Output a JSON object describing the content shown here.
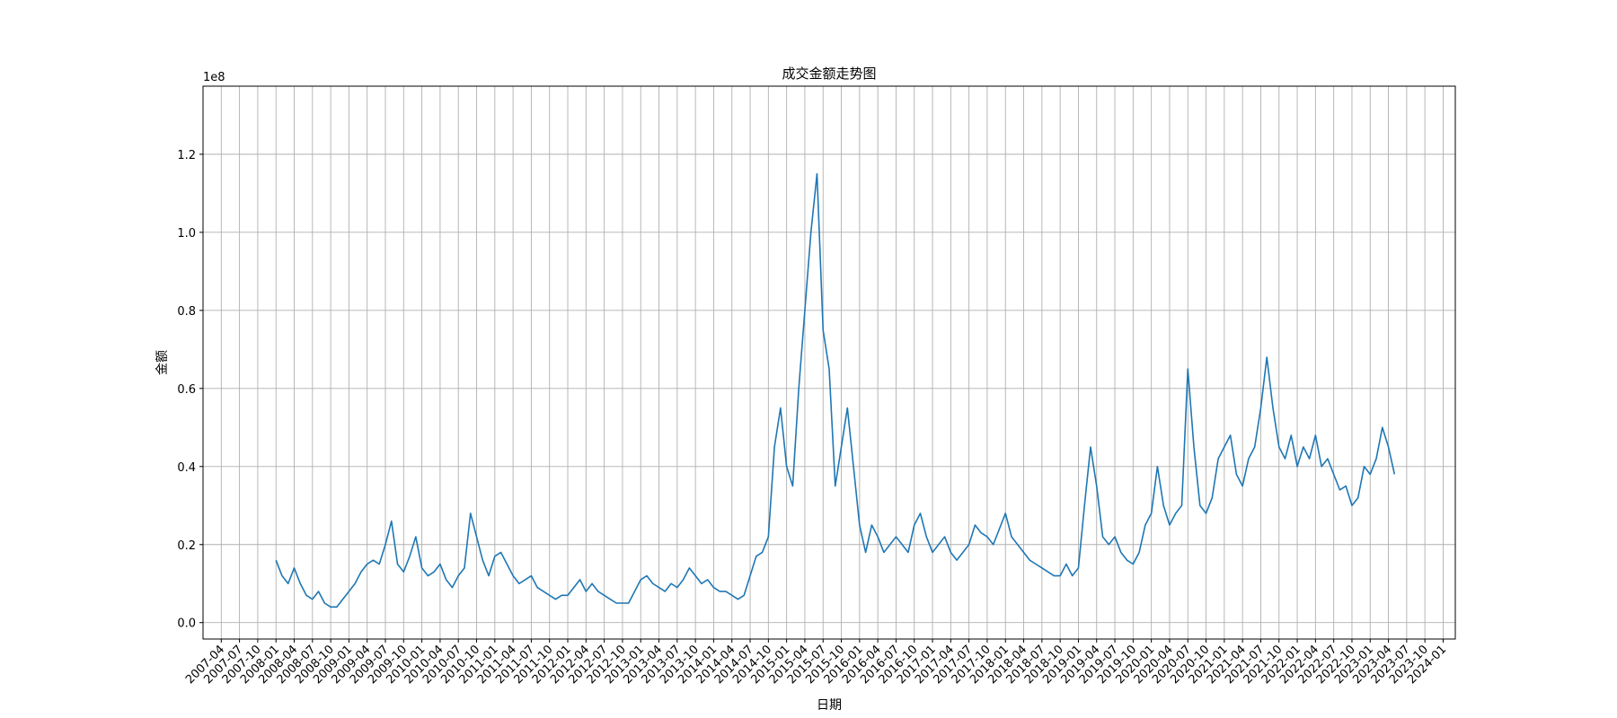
{
  "chart_data": {
    "type": "line",
    "title": "成交金额走势图",
    "xlabel": "日期",
    "ylabel": "金额",
    "y_offset_label": "1e8",
    "grid": true,
    "color": "#1f77b4",
    "xlim": [
      "2007-01",
      "2024-03"
    ],
    "ylim": [
      -0.042,
      1.3745
    ],
    "yticks": [
      {
        "value": 0,
        "label": "0.0"
      },
      0.2,
      0.4,
      0.6,
      0.8,
      {
        "value": 1,
        "label": "1.0"
      },
      1.2
    ],
    "xticks": [
      "2007-04",
      "2007-07",
      "2007-10",
      "2008-01",
      "2008-04",
      "2008-07",
      "2008-10",
      "2009-01",
      "2009-04",
      "2009-07",
      "2009-10",
      "2010-01",
      "2010-04",
      "2010-07",
      "2010-10",
      "2011-01",
      "2011-04",
      "2011-07",
      "2011-10",
      "2012-01",
      "2012-04",
      "2012-07",
      "2012-10",
      "2013-01",
      "2013-04",
      "2013-07",
      "2013-10",
      "2014-01",
      "2014-04",
      "2014-07",
      "2014-10",
      "2015-01",
      "2015-04",
      "2015-07",
      "2015-10",
      "2016-01",
      "2016-04",
      "2016-07",
      "2016-10",
      "2017-01",
      "2017-04",
      "2017-07",
      "2017-10",
      "2018-01",
      "2018-04",
      "2018-07",
      "2018-10",
      "2019-01",
      "2019-04",
      "2019-07",
      "2019-10",
      "2020-01",
      "2020-04",
      "2020-07",
      "2020-10",
      "2021-01",
      "2021-04",
      "2021-07",
      "2021-10",
      "2022-01",
      "2022-04",
      "2022-07",
      "2022-10",
      "2023-01",
      "2023-04",
      "2023-07",
      "2023-10",
      "2024-01"
    ],
    "x": [
      "2008-01",
      "2008-02",
      "2008-03",
      "2008-04",
      "2008-05",
      "2008-06",
      "2008-07",
      "2008-08",
      "2008-09",
      "2008-10",
      "2008-11",
      "2008-12",
      "2009-01",
      "2009-02",
      "2009-03",
      "2009-04",
      "2009-05",
      "2009-06",
      "2009-07",
      "2009-08",
      "2009-09",
      "2009-10",
      "2009-11",
      "2009-12",
      "2010-01",
      "2010-02",
      "2010-03",
      "2010-04",
      "2010-05",
      "2010-06",
      "2010-07",
      "2010-08",
      "2010-09",
      "2010-10",
      "2010-11",
      "2010-12",
      "2011-01",
      "2011-02",
      "2011-03",
      "2011-04",
      "2011-05",
      "2011-06",
      "2011-07",
      "2011-08",
      "2011-09",
      "2011-10",
      "2011-11",
      "2011-12",
      "2012-01",
      "2012-02",
      "2012-03",
      "2012-04",
      "2012-05",
      "2012-06",
      "2012-07",
      "2012-08",
      "2012-09",
      "2012-10",
      "2012-11",
      "2012-12",
      "2013-01",
      "2013-02",
      "2013-03",
      "2013-04",
      "2013-05",
      "2013-06",
      "2013-07",
      "2013-08",
      "2013-09",
      "2013-10",
      "2013-11",
      "2013-12",
      "2014-01",
      "2014-02",
      "2014-03",
      "2014-04",
      "2014-05",
      "2014-06",
      "2014-07",
      "2014-08",
      "2014-09",
      "2014-10",
      "2014-11",
      "2014-12",
      "2015-01",
      "2015-02",
      "2015-03",
      "2015-04",
      "2015-05",
      "2015-06",
      "2015-07",
      "2015-08",
      "2015-09",
      "2015-10",
      "2015-11",
      "2015-12",
      "2016-01",
      "2016-02",
      "2016-03",
      "2016-04",
      "2016-05",
      "2016-06",
      "2016-07",
      "2016-08",
      "2016-09",
      "2016-10",
      "2016-11",
      "2016-12",
      "2017-01",
      "2017-02",
      "2017-03",
      "2017-04",
      "2017-05",
      "2017-06",
      "2017-07",
      "2017-08",
      "2017-09",
      "2017-10",
      "2017-11",
      "2017-12",
      "2018-01",
      "2018-02",
      "2018-03",
      "2018-04",
      "2018-05",
      "2018-06",
      "2018-07",
      "2018-08",
      "2018-09",
      "2018-10",
      "2018-11",
      "2018-12",
      "2019-01",
      "2019-02",
      "2019-03",
      "2019-04",
      "2019-05",
      "2019-06",
      "2019-07",
      "2019-08",
      "2019-09",
      "2019-10",
      "2019-11",
      "2019-12",
      "2020-01",
      "2020-02",
      "2020-03",
      "2020-04",
      "2020-05",
      "2020-06",
      "2020-07",
      "2020-08",
      "2020-09",
      "2020-10",
      "2020-11",
      "2020-12",
      "2021-01",
      "2021-02",
      "2021-03",
      "2021-04",
      "2021-05",
      "2021-06",
      "2021-07",
      "2021-08",
      "2021-09",
      "2021-10",
      "2021-11",
      "2021-12",
      "2022-01",
      "2022-02",
      "2022-03",
      "2022-04",
      "2022-05",
      "2022-06",
      "2022-07",
      "2022-08",
      "2022-09",
      "2022-10",
      "2022-11",
      "2022-12",
      "2023-01",
      "2023-02",
      "2023-03",
      "2023-04",
      "2023-05"
    ],
    "values": [
      0.16,
      0.12,
      0.1,
      0.14,
      0.1,
      0.07,
      0.06,
      0.08,
      0.05,
      0.04,
      0.04,
      0.06,
      0.08,
      0.1,
      0.13,
      0.15,
      0.16,
      0.15,
      0.2,
      0.26,
      0.15,
      0.13,
      0.17,
      0.22,
      0.14,
      0.12,
      0.13,
      0.15,
      0.11,
      0.09,
      0.12,
      0.14,
      0.28,
      0.22,
      0.16,
      0.12,
      0.17,
      0.18,
      0.15,
      0.12,
      0.1,
      0.11,
      0.12,
      0.09,
      0.08,
      0.07,
      0.06,
      0.07,
      0.07,
      0.09,
      0.11,
      0.08,
      0.1,
      0.08,
      0.07,
      0.06,
      0.05,
      0.05,
      0.05,
      0.08,
      0.11,
      0.12,
      0.1,
      0.09,
      0.08,
      0.1,
      0.09,
      0.11,
      0.14,
      0.12,
      0.1,
      0.11,
      0.09,
      0.08,
      0.08,
      0.07,
      0.06,
      0.07,
      0.12,
      0.17,
      0.18,
      0.22,
      0.45,
      0.55,
      0.4,
      0.35,
      0.6,
      0.8,
      1.0,
      1.15,
      0.75,
      0.65,
      0.35,
      0.45,
      0.55,
      0.4,
      0.25,
      0.18,
      0.25,
      0.22,
      0.18,
      0.2,
      0.22,
      0.2,
      0.18,
      0.25,
      0.28,
      0.22,
      0.18,
      0.2,
      0.22,
      0.18,
      0.16,
      0.18,
      0.2,
      0.25,
      0.23,
      0.22,
      0.2,
      0.24,
      0.28,
      0.22,
      0.2,
      0.18,
      0.16,
      0.15,
      0.14,
      0.13,
      0.12,
      0.12,
      0.15,
      0.12,
      0.14,
      0.3,
      0.45,
      0.35,
      0.22,
      0.2,
      0.22,
      0.18,
      0.16,
      0.15,
      0.18,
      0.25,
      0.28,
      0.4,
      0.3,
      0.25,
      0.28,
      0.3,
      0.65,
      0.45,
      0.3,
      0.28,
      0.32,
      0.42,
      0.45,
      0.48,
      0.38,
      0.35,
      0.42,
      0.45,
      0.55,
      0.68,
      0.55,
      0.45,
      0.42,
      0.48,
      0.4,
      0.45,
      0.42,
      0.48,
      0.4,
      0.42,
      0.38,
      0.34,
      0.35,
      0.3,
      0.32,
      0.4,
      0.38,
      0.42,
      0.5,
      0.45,
      0.38
    ]
  }
}
